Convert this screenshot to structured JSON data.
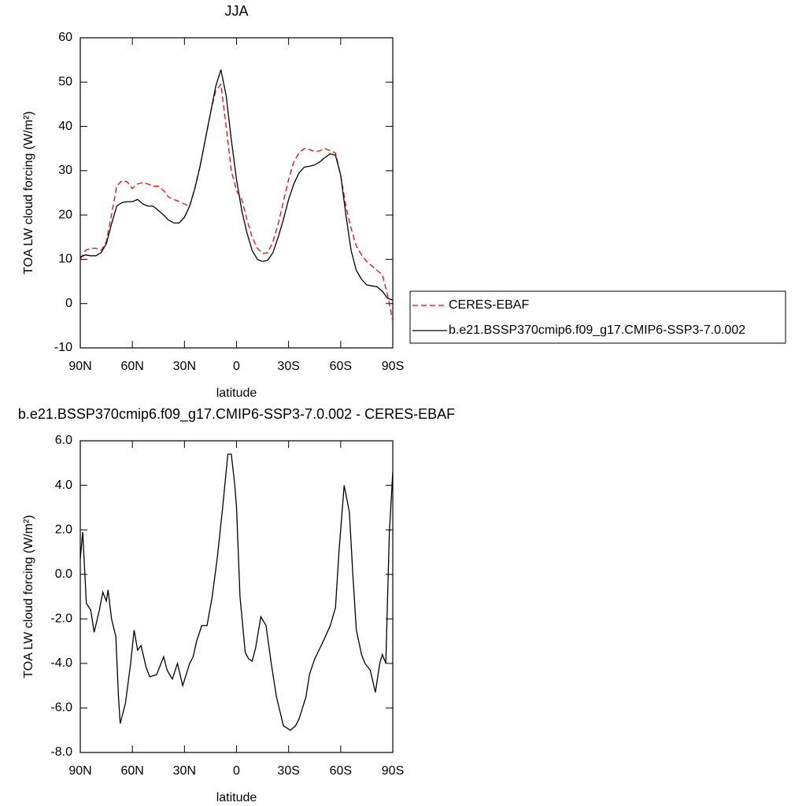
{
  "chart_data": [
    {
      "type": "line",
      "title": "JJA",
      "x_label": "latitude",
      "y_label": "TOA LW cloud forcing (W/m²)",
      "x": [
        90,
        87,
        84,
        81,
        78,
        75,
        72,
        69,
        66,
        63,
        60,
        57,
        54,
        51,
        48,
        45,
        42,
        39,
        36,
        33,
        30,
        27,
        24,
        21,
        18,
        15,
        12,
        9,
        6,
        3,
        0,
        -3,
        -6,
        -9,
        -12,
        -15,
        -18,
        -21,
        -24,
        -27,
        -30,
        -33,
        -36,
        -39,
        -42,
        -45,
        -48,
        -51,
        -54,
        -57,
        -60,
        -63,
        -66,
        -69,
        -72,
        -75,
        -78,
        -81,
        -84,
        -87,
        -90
      ],
      "xlim": [
        90,
        -90
      ],
      "xticks": [
        {
          "value": 90,
          "label": "90N"
        },
        {
          "value": 60,
          "label": "60N"
        },
        {
          "value": 30,
          "label": "30N"
        },
        0,
        {
          "value": -30,
          "label": "30S"
        },
        {
          "value": -60,
          "label": "60S"
        },
        {
          "value": -90,
          "label": "90S"
        }
      ],
      "ylim": [
        -10,
        60
      ],
      "yticks": [
        -10,
        0,
        10,
        20,
        30,
        40,
        50,
        60
      ],
      "legend": "right",
      "series": [
        {
          "name": "CERES-EBAF",
          "color": "#ff0000",
          "dash": "dashed",
          "values": [
            10,
            12,
            12.5,
            12.5,
            12,
            14,
            20,
            26.5,
            27.8,
            27.5,
            26,
            27,
            27.3,
            27,
            26.5,
            26.5,
            25.5,
            24,
            23.5,
            23,
            22.5,
            22,
            26,
            31,
            37,
            43,
            48,
            49.5,
            40,
            30,
            25.5,
            23.5,
            19,
            15,
            12.5,
            11.3,
            11.5,
            14,
            18,
            23,
            28,
            32,
            34,
            35,
            34.8,
            34.3,
            34.5,
            35,
            34.5,
            34,
            29,
            22,
            17,
            13,
            11,
            9.5,
            8.5,
            7.5,
            6.5,
            2,
            -4
          ]
        },
        {
          "name": "b.e21.BSSP370cmip6.f09_g17.CMIP6-SSP3-7.0.002",
          "color": "#000000",
          "dash": "solid",
          "values": [
            10.5,
            11,
            10.8,
            10.8,
            11.5,
            13.5,
            18,
            22,
            22.8,
            23,
            23,
            23.5,
            22.5,
            22,
            22,
            21,
            20,
            18.8,
            18.2,
            18.2,
            19.5,
            22,
            26,
            31,
            37,
            43,
            49,
            52.8,
            47,
            37,
            28,
            21,
            16,
            12,
            10,
            9.5,
            9.8,
            11.5,
            15,
            19,
            23.5,
            27,
            29.5,
            30.8,
            31,
            31.3,
            32,
            33,
            33.8,
            33.5,
            29,
            20,
            12,
            7.5,
            5.5,
            4.2,
            4,
            3.8,
            2.8,
            1.2,
            0.8
          ]
        }
      ]
    },
    {
      "type": "line",
      "title": "b.e21.BSSP370cmip6.f09_g17.CMIP6-SSP3-7.0.002 - CERES-EBAF",
      "x_label": "latitude",
      "y_label": "TOA LW cloud forcing (W/m²)",
      "x": [
        90,
        88.6,
        86.5,
        84,
        82,
        79,
        77,
        75,
        74,
        72,
        69.5,
        68,
        67,
        64,
        61,
        59,
        57,
        55,
        52,
        50,
        46,
        42,
        40,
        37,
        34,
        31,
        27,
        25,
        23,
        20,
        17,
        14,
        11,
        8,
        5,
        3,
        1,
        0,
        -2,
        -5,
        -7,
        -9,
        -11,
        -14,
        -17,
        -20,
        -23,
        -27,
        -31,
        -34,
        -36,
        -40,
        -42,
        -45,
        -50,
        -54,
        -57,
        -59,
        -62,
        -65,
        -67,
        -69,
        -72,
        -74,
        -77,
        -80,
        -82.5,
        -84,
        -86,
        -88,
        -90
      ],
      "values": [
        0.7,
        1.9,
        -1.3,
        -1.6,
        -2.6,
        -1.6,
        -0.8,
        -1.2,
        -0.7,
        -2.0,
        -2.8,
        -5.5,
        -6.7,
        -5.8,
        -4.0,
        -2.5,
        -3.4,
        -3.2,
        -4.2,
        -4.6,
        -4.5,
        -3.7,
        -4.3,
        -4.7,
        -4.0,
        -5.0,
        -4.0,
        -3.7,
        -3.0,
        -2.3,
        -2.3,
        -1.0,
        0.8,
        3.0,
        5.4,
        5.4,
        4.0,
        3.0,
        -1.0,
        -3.5,
        -3.8,
        -3.9,
        -3.3,
        -1.9,
        -2.3,
        -4.0,
        -5.5,
        -6.8,
        -7.0,
        -6.8,
        -6.5,
        -5.5,
        -4.5,
        -3.8,
        -3.0,
        -2.3,
        -1.5,
        1.0,
        4.0,
        2.8,
        0,
        -2.5,
        -3.6,
        -4.0,
        -4.3,
        -5.3,
        -4.0,
        -3.6,
        -4.0,
        1.8,
        4.6
      ],
      "color": "#000000",
      "xlim": [
        90,
        -90
      ],
      "xticks": [
        {
          "value": 90,
          "label": "90N"
        },
        {
          "value": 60,
          "label": "60N"
        },
        {
          "value": 30,
          "label": "30N"
        },
        0,
        {
          "value": -30,
          "label": "30S"
        },
        {
          "value": -60,
          "label": "60S"
        },
        {
          "value": -90,
          "label": "90S"
        }
      ],
      "ylim": [
        -8,
        6
      ],
      "yticks": [
        {
          "value": -8,
          "label": "-8.0"
        },
        {
          "value": -6,
          "label": "-6.0"
        },
        {
          "value": -4,
          "label": "-4.0"
        },
        {
          "value": -2,
          "label": "-2.0"
        },
        {
          "value": 0,
          "label": "0.0"
        },
        {
          "value": 2,
          "label": "2.0"
        },
        {
          "value": 4,
          "label": "4.0"
        },
        {
          "value": 6,
          "label": "6.0"
        }
      ]
    }
  ]
}
